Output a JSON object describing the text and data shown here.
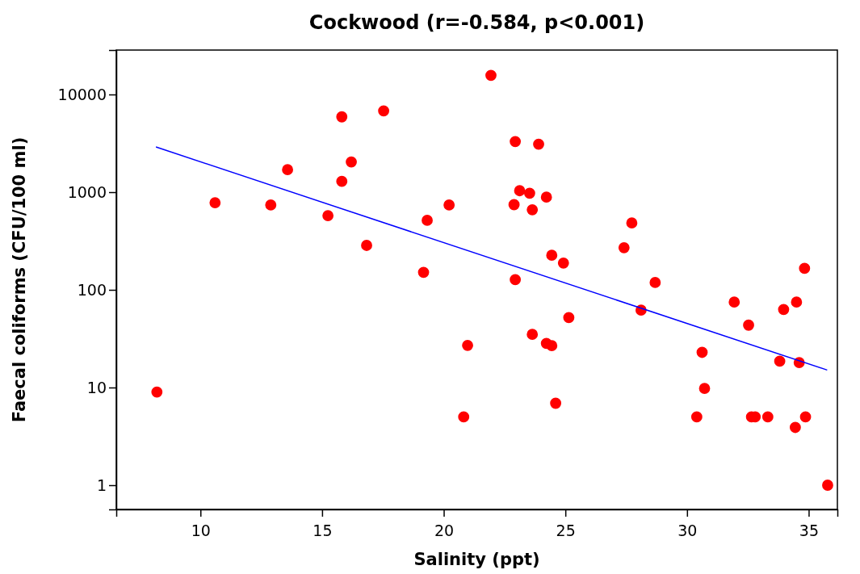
{
  "chart_data": {
    "type": "scatter",
    "title": "Cockwood (r=-0.584, p<0.001)",
    "xlabel": "Salinity (ppt)",
    "ylabel": "Faecal coliforms (CFU/100 ml)",
    "log": "y",
    "grid": false,
    "xlim": [
      6.54,
      36.18
    ],
    "xticks": [
      10,
      15,
      20,
      25,
      30,
      35
    ],
    "ylim": [
      0.565,
      28500
    ],
    "yticks": [
      1,
      10,
      100,
      1000,
      10000
    ],
    "series": [
      {
        "marker": "circle",
        "color": "#ff0000",
        "x": [
          8.21,
          10.6,
          12.89,
          13.58,
          15.24,
          15.81,
          15.81,
          16.2,
          16.83,
          17.53,
          19.17,
          19.32,
          20.22,
          20.98,
          20.82,
          21.94,
          22.94,
          23.9,
          23.12,
          23.53,
          24.22,
          22.89,
          23.64,
          27.73,
          27.41,
          24.44,
          24.92,
          22.94,
          28.69,
          28.11,
          25.14,
          31.94,
          32.53,
          33.97,
          34.5,
          34.83,
          23.64,
          24.22,
          24.44,
          30.62,
          33.81,
          34.61,
          30.72,
          24.6,
          30.4,
          32.65,
          32.8,
          33.32,
          34.87,
          34.45,
          35.78
        ],
        "values": [
          9,
          780,
          740,
          1700,
          575,
          5900,
          1290,
          2040,
          285,
          6800,
          151,
          515,
          740,
          27,
          5,
          15700,
          3300,
          3100,
          1035,
          975,
          890,
          745,
          660,
          484,
          270,
          226,
          188,
          127,
          119,
          62,
          52,
          75,
          43.5,
          63,
          75,
          166,
          35,
          28.3,
          26.8,
          22.9,
          18.6,
          18,
          9.8,
          6.9,
          5,
          5,
          5,
          5,
          5,
          3.9,
          1
        ]
      },
      {
        "type": "line",
        "color": "#0000ff",
        "x": [
          8.17,
          35.76
        ],
        "values": [
          2900,
          15.1
        ]
      }
    ]
  }
}
